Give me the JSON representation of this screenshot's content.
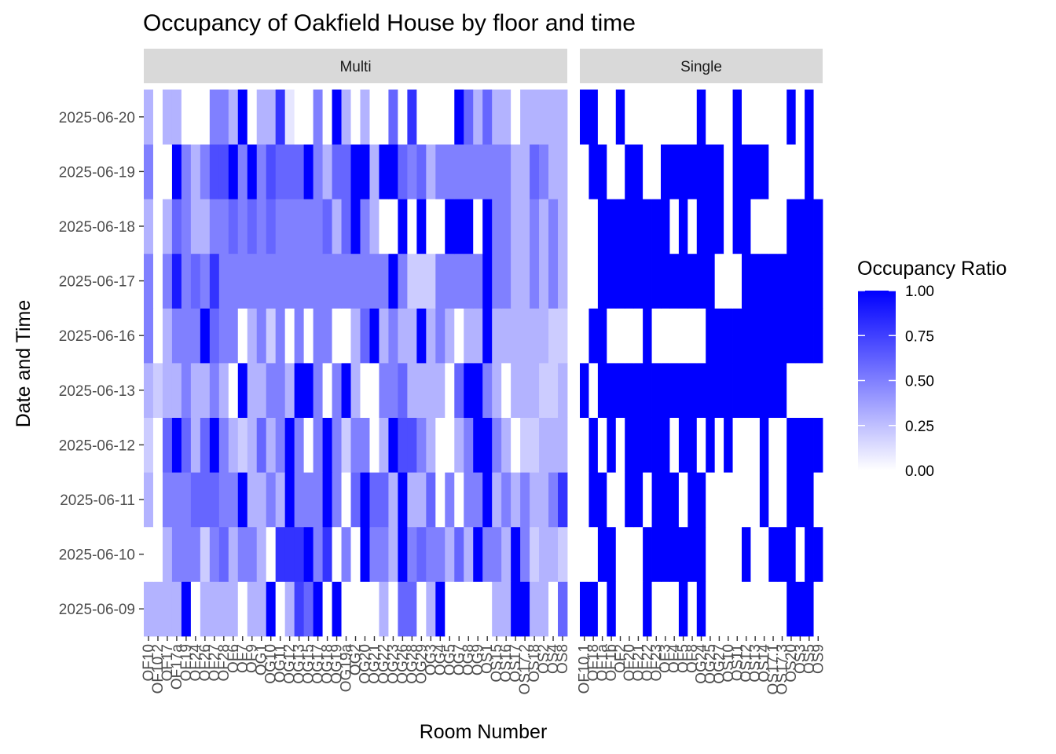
{
  "chart_data": {
    "type": "heatmap",
    "title": "Occupancy of Oakfield House by floor and time",
    "xlabel": "Room Number",
    "ylabel": "Date and Time",
    "y_categories": [
      "2025-06-09",
      "2025-06-10",
      "2025-06-11",
      "2025-06-12",
      "2025-06-13",
      "2025-06-16",
      "2025-06-17",
      "2025-06-18",
      "2025-06-19",
      "2025-06-20"
    ],
    "legend": {
      "title": "Occupancy Ratio",
      "position": "right",
      "range": [
        0,
        1
      ],
      "ticks": [
        {
          "value": 0,
          "label": "0.00"
        },
        {
          "value": 0.25,
          "label": "0.25"
        },
        {
          "value": 0.5,
          "label": "0.50"
        },
        {
          "value": 0.75,
          "label": "0.75"
        },
        {
          "value": 1,
          "label": "1.00"
        }
      ]
    },
    "colors": {
      "low": "#ffffff",
      "high": "#0000ff"
    },
    "grid": true,
    "facets": [
      {
        "name": "Multi",
        "x_categories": [
          "OF10",
          "OF10.2",
          "OF17",
          "OF17a",
          "OF19",
          "OF24",
          "OF26",
          "OF27",
          "OF28",
          "OF6",
          "OF7",
          "OF9",
          "OG1",
          "OG10",
          "OG11",
          "OG12",
          "OG13",
          "OG15",
          "OG17",
          "OG18",
          "OG19",
          "OG19a",
          "OG2",
          "OG20",
          "OG21",
          "OG22",
          "OG23",
          "OG26",
          "OG28",
          "OG29",
          "OG3",
          "OG4",
          "OG5",
          "OG7",
          "OG8",
          "OG9",
          "OS1",
          "OS15",
          "OS16",
          "OS17",
          "OS17.2",
          "OS18",
          "OS2",
          "OS4",
          "OS8"
        ],
        "values": [
          [
            0.3,
            0.3,
            0.3,
            0.3,
            1,
            0,
            0.3,
            0.3,
            0.3,
            0.3,
            0,
            0.3,
            0.3,
            1,
            0,
            0.3,
            0.75,
            0.6,
            1,
            0,
            1,
            0,
            0,
            0,
            0,
            0.3,
            0,
            0.6,
            0.6,
            0,
            0.3,
            1,
            0,
            0,
            0,
            0,
            0,
            0.3,
            0.3,
            1,
            1,
            0.3,
            0.3,
            0,
            0.6
          ],
          [
            0,
            0,
            0.3,
            0.5,
            0.5,
            0.5,
            0.2,
            0.5,
            0.6,
            0.3,
            0.5,
            0.5,
            0.3,
            0,
            0.8,
            0.8,
            0.8,
            1,
            0.5,
            0.8,
            0,
            0.5,
            0,
            1,
            0.5,
            0.5,
            0.3,
            1,
            0.5,
            0.6,
            0.5,
            0.5,
            0.3,
            0.6,
            0.3,
            1,
            0.5,
            0.5,
            0.3,
            1,
            0.5,
            0.2,
            0.3,
            0.3,
            0.2
          ],
          [
            0.3,
            0,
            0.5,
            0.5,
            0.5,
            0.6,
            0.6,
            0.6,
            0.5,
            0.5,
            1,
            0.3,
            0.3,
            0.5,
            0.3,
            1,
            0.5,
            0.5,
            0.5,
            1,
            0.5,
            0,
            0.6,
            1,
            0.6,
            0.6,
            0.3,
            1,
            0.3,
            0.3,
            0.6,
            0,
            0.5,
            0,
            0.5,
            0.5,
            1,
            0.3,
            0.5,
            0.3,
            0.5,
            0.3,
            0.3,
            0.5,
            0.8
          ],
          [
            0.2,
            0,
            0.6,
            1,
            0.6,
            0.3,
            0.6,
            1,
            0.5,
            0.3,
            0.2,
            0.3,
            0.6,
            0.3,
            0.5,
            1,
            0.5,
            0,
            0.5,
            1,
            0.5,
            0.2,
            0.5,
            0.5,
            0,
            0.3,
            1,
            0.7,
            0.7,
            0.5,
            0.3,
            0,
            0,
            0.3,
            0.5,
            1,
            1,
            0.5,
            0.3,
            0,
            0.2,
            0.2,
            0.3,
            0.3,
            0.3
          ],
          [
            0.3,
            0.2,
            0.3,
            0.3,
            0.5,
            0.3,
            0.3,
            0.5,
            0.3,
            0,
            1,
            0.3,
            0.3,
            0.5,
            0.5,
            0.3,
            1,
            1,
            0.5,
            0,
            0.5,
            1,
            0.3,
            0,
            0,
            0.5,
            0.5,
            0.6,
            0.3,
            0.3,
            0.3,
            0.3,
            0,
            0.6,
            1,
            1,
            0.5,
            0.3,
            0,
            0.3,
            0.3,
            0.3,
            0.2,
            0.2,
            0.3
          ],
          [
            0.5,
            0,
            0.3,
            0.5,
            0.5,
            0.5,
            1,
            0.6,
            0.5,
            0.5,
            0,
            0.3,
            0.5,
            0.2,
            0.5,
            0,
            0.5,
            0,
            0.5,
            0.5,
            0,
            0,
            0.3,
            0.6,
            1,
            0.3,
            0.5,
            0.3,
            0.3,
            1,
            0.3,
            0.5,
            0.3,
            0,
            0.3,
            0.3,
            1,
            0.3,
            0.3,
            0.3,
            0.3,
            0.3,
            0.3,
            0.2,
            0.2
          ],
          [
            0.5,
            0,
            0.5,
            0.9,
            0.5,
            0.6,
            0.5,
            0.8,
            0.5,
            0.5,
            0.5,
            0.5,
            0.5,
            0.5,
            0.5,
            0.5,
            0.5,
            0.5,
            0.5,
            0.5,
            0.5,
            0.5,
            0.5,
            0.5,
            0.5,
            0.5,
            1,
            0.5,
            0.2,
            0.2,
            0.2,
            0.5,
            0.5,
            0.5,
            0.5,
            0.5,
            1,
            0.5,
            0.5,
            0.3,
            0.3,
            0.5,
            0.3,
            0.5,
            0.3
          ],
          [
            0.3,
            0,
            0.3,
            0.6,
            0.5,
            0.3,
            0.3,
            0.5,
            0.5,
            0.6,
            0.5,
            0.6,
            0.5,
            0.6,
            0.5,
            0.5,
            0.5,
            0.5,
            0.5,
            0.6,
            0.3,
            0.6,
            1,
            0.5,
            0.3,
            0,
            0,
            1,
            0,
            1,
            0,
            0,
            1,
            1,
            1,
            0,
            1,
            0.5,
            0.5,
            0.3,
            0.3,
            0.5,
            0.3,
            0.5,
            0.3
          ],
          [
            0.5,
            0,
            0,
            1,
            0.5,
            0.3,
            0.5,
            0.7,
            0.7,
            1,
            0.5,
            1,
            0.5,
            0.7,
            0.6,
            0.6,
            0.6,
            1,
            0.5,
            0.3,
            0.6,
            0.6,
            1,
            1,
            0.3,
            1,
            1,
            0.6,
            0.5,
            0.6,
            0.3,
            0.5,
            0.5,
            0.5,
            0.5,
            0.5,
            0.5,
            0.5,
            0.5,
            0.3,
            0.3,
            0.6,
            0.5,
            0.3,
            0.3
          ],
          [
            0.3,
            0,
            0.3,
            0.3,
            0,
            0,
            0,
            0.5,
            0.5,
            0.3,
            1,
            0,
            0.3,
            0.3,
            0.8,
            0.1,
            0,
            0,
            0.5,
            0,
            1,
            0.3,
            0,
            0.3,
            0,
            0,
            0.6,
            0,
            0.8,
            0,
            0,
            0,
            0,
            1,
            0.6,
            0.3,
            0.6,
            0.3,
            0.3,
            0,
            0.3,
            0.3,
            0.3,
            0.3,
            0.3
          ]
        ]
      },
      {
        "name": "Single",
        "x_categories": [
          "OF10.1",
          "OF18",
          "OF1a",
          "OF1b",
          "OF2",
          "OF20",
          "OF21",
          "OF22",
          "OF23",
          "OF3",
          "OF4",
          "OF5",
          "OF8",
          "OG24",
          "OG25",
          "OG27",
          "OS10",
          "OS11",
          "OS12",
          "OS13",
          "OS14",
          "OS17.1",
          "OS17.3",
          "OS20",
          "OS3",
          "OS5",
          "OS9"
        ],
        "values": [
          [
            1,
            1,
            0,
            1,
            0,
            0,
            0,
            1,
            0,
            0,
            0,
            1,
            0,
            1,
            0,
            0,
            0,
            0,
            0,
            0,
            0,
            0,
            0,
            1,
            1,
            1,
            0
          ],
          [
            0,
            0,
            1,
            1,
            0,
            0,
            0,
            1,
            1,
            1,
            1,
            1,
            1,
            1,
            0,
            0,
            0,
            0,
            1,
            0,
            0,
            1,
            1,
            1,
            0,
            1,
            1
          ],
          [
            0,
            1,
            1,
            0,
            0,
            1,
            1,
            0,
            1,
            1,
            1,
            0,
            1,
            1,
            0,
            0,
            0,
            0,
            0,
            0,
            1,
            0,
            0,
            1,
            1,
            1,
            0
          ],
          [
            0,
            1,
            0,
            1,
            0,
            1,
            1,
            1,
            1,
            1,
            0,
            1,
            1,
            0,
            1,
            0,
            1,
            0,
            0,
            0,
            1,
            0,
            0,
            1,
            1,
            1,
            1
          ],
          [
            1,
            0,
            1,
            1,
            1,
            1,
            1,
            1,
            1,
            1,
            1,
            1,
            1,
            1,
            1,
            1,
            1,
            1,
            1,
            1,
            1,
            1,
            1,
            0,
            0,
            0,
            0
          ],
          [
            0,
            1,
            1,
            0,
            0,
            0,
            0,
            1,
            0,
            0,
            0,
            0,
            0,
            0,
            1,
            1,
            1,
            1,
            1,
            1,
            1,
            1,
            1,
            1,
            1,
            1,
            1
          ],
          [
            0,
            0,
            1,
            1,
            1,
            1,
            1,
            1,
            1,
            1,
            1,
            1,
            1,
            1,
            1,
            0,
            0,
            0,
            1,
            1,
            1,
            1,
            1,
            1,
            1,
            1,
            1
          ],
          [
            0,
            0,
            1,
            1,
            1,
            1,
            1,
            1,
            1,
            1,
            0,
            1,
            0,
            1,
            1,
            1,
            0,
            1,
            1,
            0,
            0,
            0,
            0,
            1,
            1,
            1,
            1
          ],
          [
            0,
            1,
            1,
            0,
            0,
            1,
            1,
            0,
            0,
            1,
            1,
            1,
            1,
            1,
            1,
            1,
            0,
            1,
            1,
            1,
            1,
            0,
            0,
            0,
            0,
            1,
            0
          ],
          [
            1,
            1,
            0,
            0,
            1,
            0,
            0,
            0,
            0,
            0,
            0,
            0,
            0,
            1,
            0,
            0,
            0,
            1,
            0,
            0,
            0,
            0,
            0,
            1,
            0,
            1,
            0
          ]
        ]
      }
    ]
  }
}
